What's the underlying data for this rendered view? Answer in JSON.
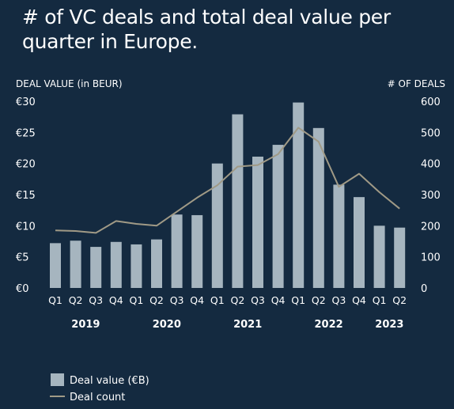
{
  "title": "# of VC deals and total deal value per quarter in Europe.",
  "colors": {
    "background": "#142a40",
    "bar": "#a6b5bf",
    "line": "#a09a86",
    "text": "#ffffff"
  },
  "chart_data": {
    "type": "bar",
    "left_axis_label": "DEAL VALUE (in BEUR)",
    "right_axis_label": "# OF DEALS",
    "left_ticks": [
      "€0",
      "€5",
      "€10",
      "€15",
      "€20",
      "€25",
      "€30"
    ],
    "right_ticks": [
      "0",
      "100",
      "200",
      "300",
      "400",
      "500",
      "600"
    ],
    "ylim_left": [
      0,
      30
    ],
    "ylim_right": [
      0,
      600
    ],
    "categories": [
      "Q1",
      "Q2",
      "Q3",
      "Q4",
      "Q1",
      "Q2",
      "Q3",
      "Q4",
      "Q1",
      "Q2",
      "Q3",
      "Q4",
      "Q1",
      "Q2",
      "Q3",
      "Q4",
      "Q1",
      "Q2"
    ],
    "years": [
      {
        "label": "2019",
        "start": 0,
        "end": 3
      },
      {
        "label": "2020",
        "start": 4,
        "end": 7
      },
      {
        "label": "2021",
        "start": 8,
        "end": 11
      },
      {
        "label": "2022",
        "start": 12,
        "end": 15
      },
      {
        "label": "2023",
        "start": 16,
        "end": 17
      }
    ],
    "series": [
      {
        "name": "Deal value (€B)",
        "type": "bar",
        "axis": "left",
        "values": [
          7.2,
          7.6,
          6.6,
          7.4,
          7.0,
          7.8,
          11.8,
          11.7,
          20.0,
          27.9,
          21.1,
          23.0,
          29.8,
          25.7,
          16.6,
          14.6,
          10.0,
          9.7
        ]
      },
      {
        "name": "Deal count",
        "type": "line",
        "axis": "right",
        "values": [
          185,
          183,
          177,
          215,
          206,
          200,
          245,
          290,
          330,
          390,
          395,
          430,
          515,
          470,
          325,
          367,
          308,
          255
        ]
      }
    ],
    "legend": {
      "position": "bottom-left"
    },
    "grid": false
  }
}
